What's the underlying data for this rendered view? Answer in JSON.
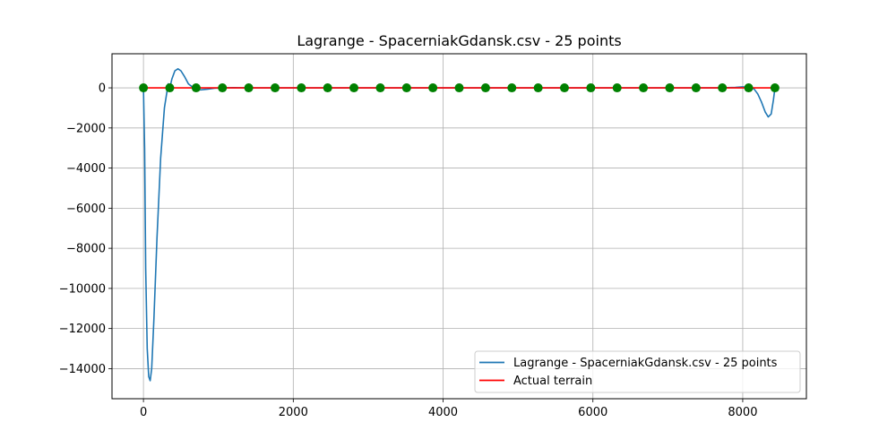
{
  "chart_data": {
    "type": "line",
    "title": "Lagrange - SpacerniakGdansk.csv - 25 points",
    "xlabel": "",
    "ylabel": "",
    "xlim": [
      -420,
      8850
    ],
    "ylim": [
      -15500,
      1700
    ],
    "xticks": [
      0,
      2000,
      4000,
      6000,
      8000
    ],
    "xtick_labels": [
      "0",
      "2000",
      "4000",
      "6000",
      "8000"
    ],
    "yticks": [
      0,
      -2000,
      -4000,
      -6000,
      -8000,
      -10000,
      -12000,
      -14000
    ],
    "ytick_labels": [
      "0",
      "−2000",
      "−4000",
      "−6000",
      "−8000",
      "−10000",
      "−12000",
      "−14000"
    ],
    "grid": true,
    "legend_position": "lower-right",
    "series": [
      {
        "name": "Lagrange - SpacerniakGdansk.csv - 25 points",
        "color": "#1f77b4",
        "x": [
          0,
          15,
          30,
          50,
          70,
          90,
          110,
          140,
          180,
          230,
          280,
          330,
          351,
          380,
          420,
          460,
          500,
          550,
          600,
          650,
          703,
          760,
          850,
          950,
          1054,
          1200,
          1400,
          1757,
          2500,
          4000,
          5500,
          7000,
          7700,
          7900,
          8000,
          8080,
          8100,
          8150,
          8200,
          8250,
          8300,
          8340,
          8380,
          8410,
          8430
        ],
        "y": [
          0,
          -3000,
          -9000,
          -13000,
          -14400,
          -14600,
          -14000,
          -11500,
          -7500,
          -3500,
          -1000,
          200,
          0,
          450,
          850,
          950,
          850,
          550,
          200,
          50,
          0,
          -100,
          -70,
          -20,
          0,
          10,
          0,
          0,
          0,
          0,
          0,
          0,
          0,
          20,
          50,
          20,
          0,
          -50,
          -300,
          -700,
          -1200,
          -1450,
          -1300,
          -600,
          0
        ]
      },
      {
        "name": "Actual terrain",
        "color": "#ff0000",
        "x": [
          0,
          8430
        ],
        "y": [
          0,
          0
        ]
      }
    ],
    "points": {
      "color": "#008000",
      "x": [
        0,
        351,
        703,
        1054,
        1405,
        1757,
        2108,
        2459,
        2810,
        3162,
        3513,
        3864,
        4215,
        4567,
        4918,
        5269,
        5620,
        5972,
        6323,
        6674,
        7025,
        7377,
        7728,
        8079,
        8430
      ],
      "y": [
        0,
        0,
        0,
        0,
        0,
        0,
        0,
        0,
        0,
        0,
        0,
        0,
        0,
        0,
        0,
        0,
        0,
        0,
        0,
        0,
        0,
        0,
        0,
        0,
        0
      ]
    }
  }
}
